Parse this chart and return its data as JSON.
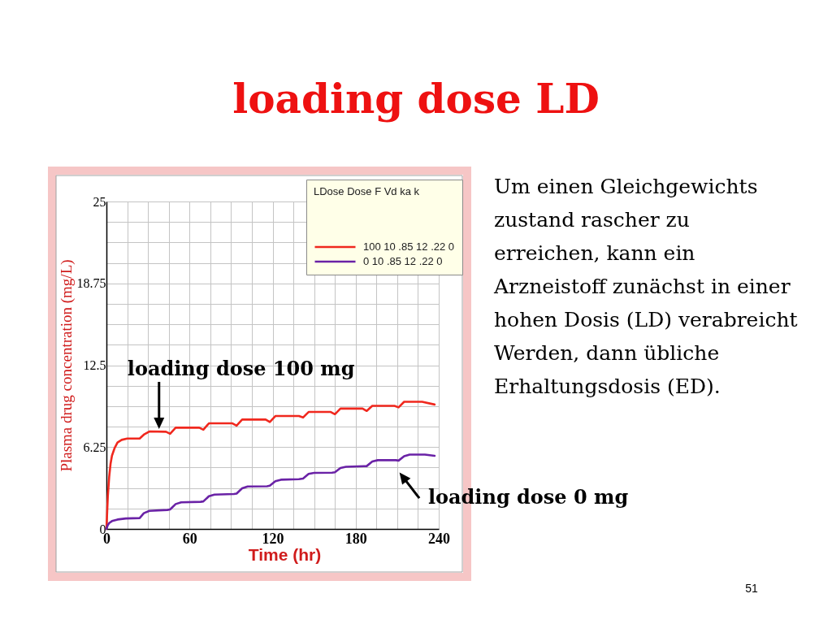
{
  "chart_data": {
    "type": "line",
    "title": "loading dose LD",
    "xlabel": "Time (hr)",
    "ylabel": "Plasma drug concentration (mg/L)",
    "legend_title": "LDose Dose F Vd ka k",
    "xlim": [
      0,
      240
    ],
    "ylim": [
      0,
      25
    ],
    "xticks": [
      0,
      {
        "value": 15,
        "label": null
      },
      {
        "value": 30,
        "label": null
      },
      {
        "value": 45,
        "label": null
      },
      60,
      {
        "value": 75,
        "label": null
      },
      {
        "value": 90,
        "label": null
      },
      {
        "value": 105,
        "label": null
      },
      120,
      {
        "value": 135,
        "label": null
      },
      {
        "value": 150,
        "label": null
      },
      {
        "value": 165,
        "label": null
      },
      180,
      {
        "value": 195,
        "label": null
      },
      {
        "value": 210,
        "label": null
      },
      {
        "value": 225,
        "label": null
      },
      240
    ],
    "yticks": [
      0,
      {
        "value": 1.5625,
        "label": null
      },
      {
        "value": 3.125,
        "label": null
      },
      {
        "value": 4.6875,
        "label": null
      },
      6.25,
      {
        "value": 7.8125,
        "label": null
      },
      {
        "value": 9.375,
        "label": null
      },
      {
        "value": 10.9375,
        "label": null
      },
      12.5,
      {
        "value": 14.0625,
        "label": null
      },
      {
        "value": 15.625,
        "label": null
      },
      {
        "value": 17.1875,
        "label": null
      },
      18.75,
      {
        "value": 20.3125,
        "label": null
      },
      {
        "value": 21.875,
        "label": null
      },
      {
        "value": 23.4375,
        "label": null
      },
      25
    ],
    "grid": true,
    "legend": "top right",
    "series": [
      {
        "name": "100 10 .85 12 .22 0",
        "color": "#f0281e",
        "x": [
          0,
          1,
          2,
          3,
          4,
          6,
          8,
          11,
          15,
          24,
          27,
          31,
          43,
          46,
          50,
          67,
          70,
          74,
          91,
          94,
          98,
          115,
          118,
          122,
          139,
          142,
          146,
          162,
          165,
          169,
          185,
          188,
          192,
          208,
          211,
          215,
          228,
          237
        ],
        "values": [
          0,
          2.5,
          4.0,
          5.0,
          5.6,
          6.2,
          6.6,
          6.8,
          6.9,
          6.9,
          7.2,
          7.44,
          7.42,
          7.27,
          7.73,
          7.73,
          7.58,
          8.06,
          8.06,
          7.89,
          8.35,
          8.35,
          8.16,
          8.62,
          8.62,
          8.51,
          8.93,
          8.93,
          8.76,
          9.19,
          9.19,
          9.01,
          9.4,
          9.4,
          9.28,
          9.71,
          9.71,
          9.5
        ]
      },
      {
        "name": "0 10 .85 12 .22 0",
        "color": "#6a22a6",
        "x": [
          0,
          1,
          2,
          4,
          8,
          14,
          24,
          27,
          31,
          44,
          46,
          50,
          54,
          68,
          70,
          74,
          78,
          92,
          94,
          98,
          102,
          116,
          118,
          122,
          126,
          139,
          142,
          146,
          150,
          163,
          165,
          169,
          173,
          186,
          188,
          192,
          196,
          209,
          211,
          215,
          219,
          230,
          237
        ],
        "values": [
          0,
          0.3,
          0.45,
          0.6,
          0.72,
          0.8,
          0.83,
          1.2,
          1.38,
          1.45,
          1.49,
          1.9,
          2.03,
          2.07,
          2.1,
          2.5,
          2.62,
          2.67,
          2.7,
          3.1,
          3.24,
          3.26,
          3.3,
          3.65,
          3.76,
          3.8,
          3.85,
          4.2,
          4.28,
          4.3,
          4.33,
          4.65,
          4.75,
          4.79,
          4.8,
          5.15,
          5.25,
          5.25,
          5.22,
          5.55,
          5.68,
          5.68,
          5.58
        ]
      }
    ],
    "annotations": [
      {
        "text": "loading dose 100 mg",
        "x": 38,
        "y": 7.44
      },
      {
        "text": "loading dose 0 mg",
        "x": 210,
        "y": 5.25
      },
      "Um einen Gleichgewichts\nzustand rascher zu\nerreichen, kann ein\nArzneistoff zunächst in einer\nhohen Dosis (LD) verabreicht\nWerden, dann übliche\nErhaltungsdosis (ED).",
      "51"
    ]
  }
}
